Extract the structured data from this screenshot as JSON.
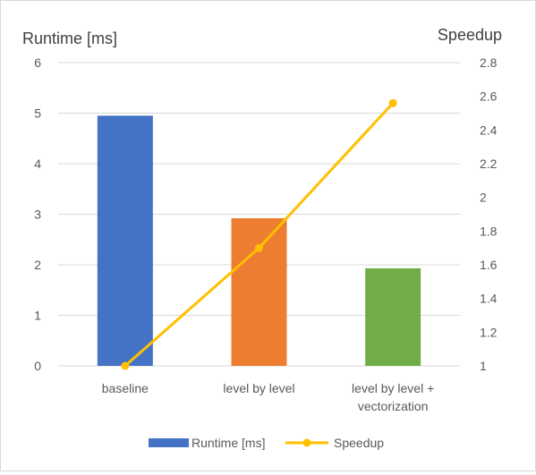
{
  "chart_data": {
    "type": "bar+line",
    "categories": [
      "baseline",
      "level by level",
      "level by level + vectorization"
    ],
    "category_lines": [
      [
        "baseline"
      ],
      [
        "level by level"
      ],
      [
        "level by level +",
        "vectorization"
      ]
    ],
    "series": [
      {
        "name": "Runtime [ms]",
        "type": "bar",
        "axis": "left",
        "values": [
          4.95,
          2.92,
          1.93
        ],
        "color": "#4472C4"
      },
      {
        "name": "Speedup",
        "type": "line",
        "axis": "right",
        "values": [
          1.0,
          1.7,
          2.56
        ],
        "color": "#FFC000"
      }
    ],
    "bar_colors": [
      "#4472C4",
      "#ED7D31",
      "#70AD47"
    ],
    "ylabel_left": "Runtime [ms]",
    "ylabel_right": "Speedup",
    "ylim_left": [
      0,
      6
    ],
    "yticks_left": [
      "0",
      "1",
      "2",
      "3",
      "4",
      "5",
      "6"
    ],
    "ylim_right": [
      1,
      2.8
    ],
    "yticks_right": [
      "1",
      "1.2",
      "1.4",
      "1.6",
      "1.8",
      "2",
      "2.2",
      "2.4",
      "2.6",
      "2.8"
    ],
    "grid": true,
    "legend": "bottom",
    "legend_entries": [
      "Runtime [ms]",
      "Speedup"
    ]
  }
}
